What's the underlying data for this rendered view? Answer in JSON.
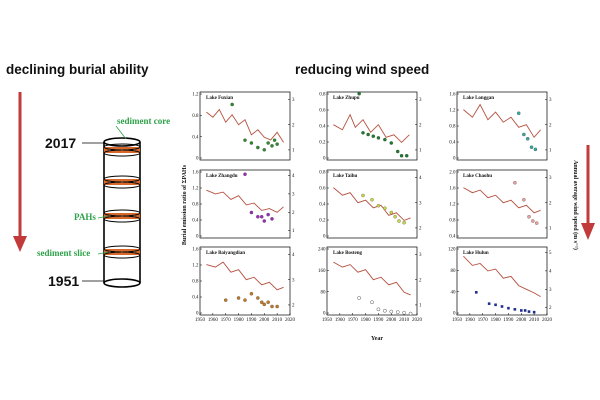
{
  "headers": {
    "left": "declining burial ability",
    "right": "reducing wind speed"
  },
  "core": {
    "label_core": "sediment core",
    "label_pahs": "PAHs",
    "label_slice": "sediment slice",
    "year_top": "2017",
    "year_bottom": "1951"
  },
  "axis_labels": {
    "y_left": "Burial emission ratio of ΣPAHs",
    "y_right": "Annual average wind speed (m s⁻¹)",
    "x": "Year"
  },
  "x_ticks": [
    "1950",
    "1960",
    "1970",
    "1980",
    "1990",
    "2000",
    "2010",
    "2020"
  ],
  "colors": {
    "wind_line": "#b5513f",
    "arrow": "#c23a3a",
    "ring": "#d8692c",
    "green_label": "#2fa24a"
  },
  "chart_data": [
    {
      "type": "scatter",
      "title": "Lake Fuxian",
      "marker_color": "#2e8b2e",
      "yticks_left": [
        "1.2",
        "0.8",
        "0.4",
        "0"
      ],
      "yticks_right": [
        "3",
        "2",
        "1"
      ],
      "points": [
        [
          1975,
          0.98
        ],
        [
          1985,
          0.35
        ],
        [
          1990,
          0.3
        ],
        [
          1995,
          0.22
        ],
        [
          2000,
          0.18
        ],
        [
          2003,
          0.3
        ],
        [
          2006,
          0.25
        ],
        [
          2008,
          0.35
        ],
        [
          2010,
          0.28
        ]
      ],
      "wind": [
        [
          1955,
          2.5
        ],
        [
          1960,
          2.3
        ],
        [
          1965,
          2.6
        ],
        [
          1970,
          2.1
        ],
        [
          1975,
          2.4
        ],
        [
          1980,
          2.0
        ],
        [
          1985,
          2.2
        ],
        [
          1990,
          1.6
        ],
        [
          1995,
          1.8
        ],
        [
          2000,
          1.5
        ],
        [
          2005,
          1.4
        ],
        [
          2010,
          1.7
        ],
        [
          2015,
          1.3
        ]
      ]
    },
    {
      "type": "scatter",
      "title": "Lake Zhupu",
      "marker_color": "#1f7a2e",
      "yticks_left": [
        "0.8",
        "0.6",
        "0.4",
        "0.2",
        "0"
      ],
      "yticks_right": [
        "3",
        "2",
        "1"
      ],
      "points": [
        [
          1975,
          0.78
        ],
        [
          1978,
          0.32
        ],
        [
          1982,
          0.3
        ],
        [
          1986,
          0.28
        ],
        [
          1990,
          0.26
        ],
        [
          1995,
          0.24
        ],
        [
          2000,
          0.2
        ],
        [
          2005,
          0.1
        ],
        [
          2008,
          0.05
        ],
        [
          2012,
          0.05
        ]
      ],
      "wind": [
        [
          1955,
          2.0
        ],
        [
          1962,
          1.8
        ],
        [
          1968,
          2.4
        ],
        [
          1972,
          1.9
        ],
        [
          1978,
          2.2
        ],
        [
          1984,
          1.7
        ],
        [
          1990,
          2.0
        ],
        [
          1996,
          1.5
        ],
        [
          2002,
          1.6
        ],
        [
          2008,
          1.3
        ],
        [
          2014,
          1.6
        ]
      ]
    },
    {
      "type": "scatter",
      "title": "Lake Longgan",
      "marker_color": "#3aa6a0",
      "yticks_left": [
        "1.6",
        "1.2",
        "0.8",
        "0.4",
        "0"
      ],
      "yticks_right": [
        "3",
        "2",
        "1"
      ],
      "points": [
        [
          1998,
          1.1
        ],
        [
          2002,
          0.6
        ],
        [
          2005,
          0.5
        ],
        [
          2008,
          0.3
        ],
        [
          2011,
          0.25
        ]
      ],
      "wind": [
        [
          1955,
          2.6
        ],
        [
          1962,
          2.3
        ],
        [
          1968,
          2.8
        ],
        [
          1974,
          2.2
        ],
        [
          1980,
          2.5
        ],
        [
          1986,
          2.1
        ],
        [
          1992,
          2.3
        ],
        [
          1998,
          1.9
        ],
        [
          2004,
          2.0
        ],
        [
          2010,
          1.5
        ],
        [
          2015,
          1.8
        ]
      ]
    },
    {
      "type": "scatter",
      "title": "Lake Zhangdu",
      "marker_color": "#9b2fb8",
      "yticks_left": [
        "1.6",
        "1.2",
        "0.8",
        "0.4",
        "0"
      ],
      "yticks_right": [
        "4",
        "3",
        "2",
        "1"
      ],
      "points": [
        [
          1985,
          1.5
        ],
        [
          1990,
          0.6
        ],
        [
          1995,
          0.5
        ],
        [
          1998,
          0.5
        ],
        [
          2000,
          0.4
        ],
        [
          2003,
          0.55
        ],
        [
          2006,
          0.45
        ]
      ],
      "wind": [
        [
          1955,
          3.2
        ],
        [
          1962,
          3.0
        ],
        [
          1968,
          3.1
        ],
        [
          1974,
          2.7
        ],
        [
          1980,
          2.9
        ],
        [
          1986,
          2.4
        ],
        [
          1992,
          2.5
        ],
        [
          1998,
          2.1
        ],
        [
          2004,
          2.2
        ],
        [
          2010,
          2.0
        ],
        [
          2015,
          2.3
        ]
      ]
    },
    {
      "type": "scatter",
      "title": "Lake Taihu",
      "marker_color": "#c8d84a",
      "yticks_left": [
        "0.8",
        "0.6",
        "0.4",
        "0.2",
        "0"
      ],
      "yticks_right": [
        "4",
        "3",
        "2"
      ],
      "points": [
        [
          1978,
          0.5
        ],
        [
          1985,
          0.45
        ],
        [
          1990,
          0.38
        ],
        [
          1995,
          0.35
        ],
        [
          2000,
          0.3
        ],
        [
          2003,
          0.25
        ],
        [
          2006,
          0.2
        ],
        [
          2010,
          0.18
        ]
      ],
      "wind": [
        [
          1955,
          3.6
        ],
        [
          1962,
          3.3
        ],
        [
          1968,
          3.4
        ],
        [
          1974,
          3.0
        ],
        [
          1980,
          3.1
        ],
        [
          1986,
          2.8
        ],
        [
          1992,
          2.9
        ],
        [
          1998,
          2.5
        ],
        [
          2004,
          2.6
        ],
        [
          2010,
          2.3
        ],
        [
          2015,
          2.4
        ]
      ]
    },
    {
      "type": "scatter",
      "title": "Lake Chaohu",
      "marker_color": "#e8a0a0",
      "yticks_left": [
        "2.0",
        "1.6",
        "1.2",
        "0.8",
        "0.4"
      ],
      "yticks_right": [
        "3",
        "2",
        "1"
      ],
      "points": [
        [
          1995,
          1.7
        ],
        [
          2002,
          1.3
        ],
        [
          2006,
          0.9
        ],
        [
          2009,
          0.8
        ],
        [
          2012,
          0.75
        ]
      ],
      "wind": [
        [
          1955,
          2.6
        ],
        [
          1962,
          2.4
        ],
        [
          1968,
          2.5
        ],
        [
          1974,
          2.2
        ],
        [
          1980,
          2.3
        ],
        [
          1986,
          2.0
        ],
        [
          1992,
          2.1
        ],
        [
          1998,
          1.8
        ],
        [
          2004,
          1.9
        ],
        [
          2010,
          1.6
        ],
        [
          2015,
          1.7
        ]
      ]
    },
    {
      "type": "scatter",
      "title": "Lake Baiyangdian",
      "marker_color": "#c07a2a",
      "yticks_left": [
        "1.6",
        "1.2",
        "0.8",
        "0.4",
        "0"
      ],
      "yticks_right": [
        "4",
        "3",
        "2"
      ],
      "points": [
        [
          1970,
          0.35
        ],
        [
          1980,
          0.4
        ],
        [
          1985,
          0.35
        ],
        [
          1990,
          0.5
        ],
        [
          1995,
          0.4
        ],
        [
          1998,
          0.3
        ],
        [
          2000,
          0.25
        ],
        [
          2003,
          0.3
        ],
        [
          2006,
          0.2
        ],
        [
          2010,
          0.2
        ]
      ],
      "wind": [
        [
          1955,
          3.6
        ],
        [
          1962,
          3.5
        ],
        [
          1968,
          3.7
        ],
        [
          1974,
          3.3
        ],
        [
          1980,
          3.4
        ],
        [
          1986,
          3.0
        ],
        [
          1992,
          3.1
        ],
        [
          1998,
          2.8
        ],
        [
          2004,
          2.9
        ],
        [
          2010,
          2.6
        ],
        [
          2015,
          2.7
        ]
      ]
    },
    {
      "type": "scatter",
      "title": "Lake Bosteng",
      "marker_color": "#ffffff",
      "yticks_left": [
        "240",
        "160",
        "80",
        "0"
      ],
      "yticks_right": [
        "3",
        "2",
        "1"
      ],
      "points": [
        [
          1975,
          60
        ],
        [
          1985,
          45
        ],
        [
          1990,
          20
        ],
        [
          1995,
          15
        ],
        [
          2000,
          12
        ],
        [
          2005,
          10
        ],
        [
          2010,
          8
        ],
        [
          2015,
          5
        ]
      ],
      "wind": [
        [
          1955,
          2.7
        ],
        [
          1962,
          2.5
        ],
        [
          1968,
          2.6
        ],
        [
          1974,
          2.3
        ],
        [
          1980,
          2.4
        ],
        [
          1986,
          2.0
        ],
        [
          1992,
          2.1
        ],
        [
          1998,
          1.8
        ],
        [
          2004,
          1.9
        ],
        [
          2010,
          1.5
        ],
        [
          2015,
          1.4
        ]
      ]
    },
    {
      "type": "scatter",
      "title": "Lake Hulun",
      "marker_color": "#1f2e8c",
      "yticks_left": [
        "120",
        "80",
        "40",
        "0"
      ],
      "yticks_right": [
        "5",
        "4",
        "3",
        "2"
      ],
      "points": [
        [
          1965,
          40
        ],
        [
          1975,
          20
        ],
        [
          1980,
          18
        ],
        [
          1985,
          15
        ],
        [
          1990,
          12
        ],
        [
          1995,
          10
        ],
        [
          2000,
          8
        ],
        [
          2003,
          8
        ],
        [
          2006,
          6
        ],
        [
          2010,
          5
        ]
      ],
      "wind": [
        [
          1955,
          4.8
        ],
        [
          1962,
          4.3
        ],
        [
          1968,
          4.4
        ],
        [
          1974,
          4.0
        ],
        [
          1980,
          4.1
        ],
        [
          1986,
          3.6
        ],
        [
          1992,
          3.7
        ],
        [
          1998,
          3.2
        ],
        [
          2004,
          3.0
        ],
        [
          2010,
          2.8
        ],
        [
          2015,
          2.6
        ]
      ]
    }
  ]
}
